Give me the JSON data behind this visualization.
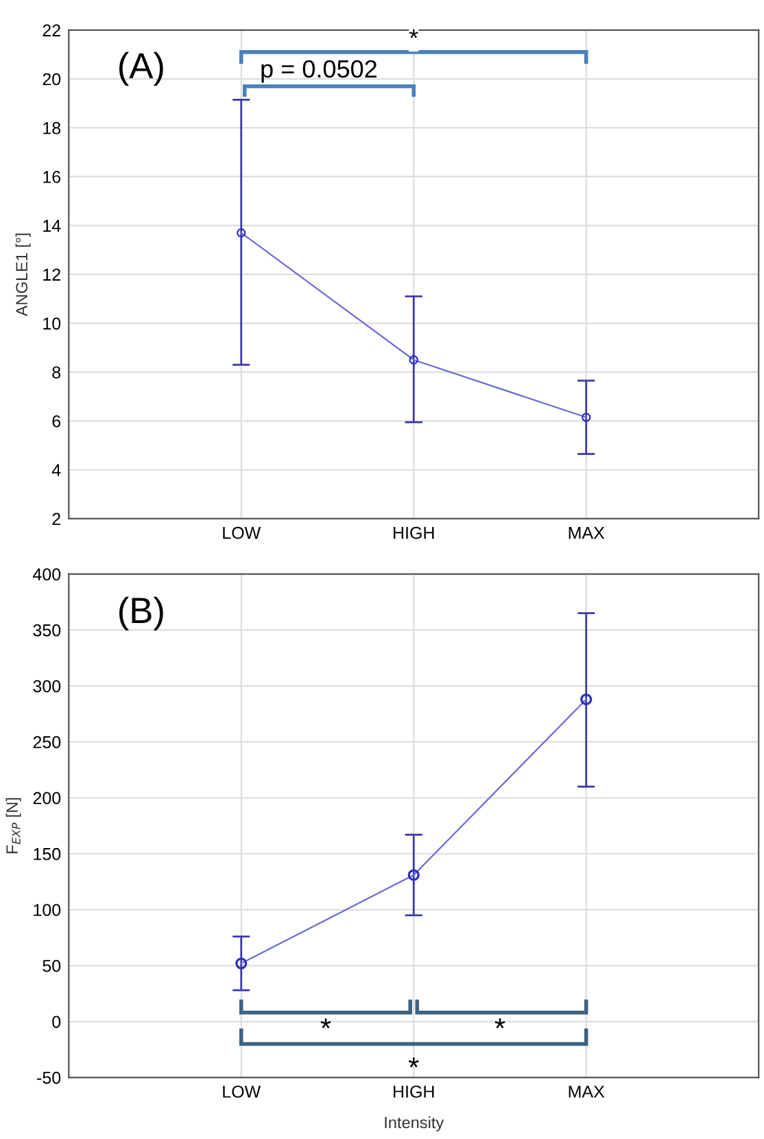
{
  "chart_data": [
    {
      "type": "line",
      "ylabel": "ANGLE1 [°]",
      "categories": [
        "LOW",
        "HIGH",
        "MAX"
      ],
      "series": [
        {
          "color": "#6a6ad8",
          "values": [
            13.7,
            8.5,
            6.15
          ],
          "errors": [
            [
              8.3,
              19.15
            ],
            [
              5.95,
              11.1
            ],
            [
              4.65,
              7.65
            ]
          ]
        }
      ],
      "ylim": [
        2,
        22
      ],
      "yticks": [
        2,
        4,
        6,
        8,
        10,
        12,
        14,
        16,
        18,
        20,
        22
      ],
      "grid": true,
      "marker": "circle",
      "line_style": "solid",
      "annotations": [
        "(A)",
        "*",
        "p = 0.0502"
      ]
    },
    {
      "type": "line",
      "xlabel": "Intensity",
      "ylabel": "F$_{EXP}$ [N]",
      "categories": [
        "LOW",
        "HIGH",
        "MAX"
      ],
      "series": [
        {
          "color": "#6a6ad8",
          "values": [
            52,
            131,
            288
          ],
          "errors": [
            [
              28,
              76
            ],
            [
              95,
              167
            ],
            [
              210,
              365
            ]
          ]
        }
      ],
      "ylim": [
        -50,
        400
      ],
      "yticks": [
        -50,
        0,
        50,
        100,
        150,
        200,
        250,
        300,
        350,
        400
      ],
      "grid": true,
      "marker": "circle",
      "line_style": "solid",
      "annotations": [
        "(B)",
        "*",
        "*",
        "*"
      ]
    }
  ]
}
